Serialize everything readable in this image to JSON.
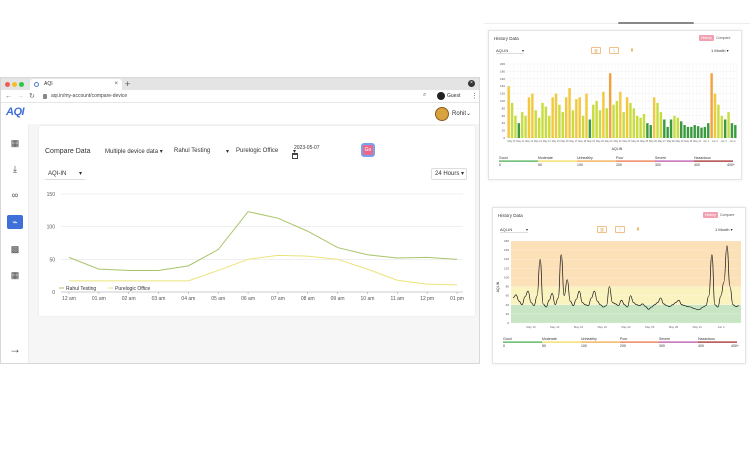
{
  "browser": {
    "tab_title": "AQI",
    "tab_close": "×",
    "new_tab": "+",
    "url": "aqi.in/my-account/compare-device",
    "profile": "Guest",
    "kebab": "⋮"
  },
  "app": {
    "logo": "AQI",
    "user_name": "Rohit",
    "sidebar_icons": [
      "grid-icon",
      "download-icon",
      "link-icon",
      "chart-icon",
      "qr-icon",
      "grid-icon"
    ],
    "compare": {
      "title": "Compare Data",
      "device_mode": "Multiple device data",
      "device_1": "Rahul Testing",
      "device_2": "Purelogic Office",
      "date": "2023-05-07",
      "go_label": "Go",
      "metric": "AQI-IN",
      "range": "24 Hours"
    }
  },
  "chart_data": [
    {
      "type": "line",
      "x": [
        "12 am",
        "01 am",
        "02 am",
        "03 am",
        "04 am",
        "05 am",
        "06 am",
        "07 am",
        "08 am",
        "09 am",
        "10 am",
        "11 am",
        "12 pm",
        "01 pm"
      ],
      "yticks": [
        0,
        50,
        100,
        150
      ],
      "ylim": [
        0,
        150
      ],
      "series": [
        {
          "name": "Rahul Testing",
          "color": "#a7c46a",
          "values": [
            53,
            35,
            33,
            33,
            40,
            65,
            123,
            113,
            93,
            68,
            57,
            52,
            53,
            50
          ]
        },
        {
          "name": "Purelogic Office",
          "color": "#ebe37a",
          "values": [
            17,
            17,
            17,
            17,
            17,
            33,
            50,
            56,
            55,
            50,
            35,
            18,
            12,
            11
          ]
        }
      ]
    },
    {
      "type": "bar",
      "title": "History Data",
      "badge_history": "History",
      "badge_compare": "Compare",
      "metric": "AQI-IN",
      "range": "1 Month",
      "xlabel": "AQI-IN",
      "yticks": [
        0,
        20,
        40,
        60,
        80,
        100,
        120,
        140,
        160,
        180,
        200
      ],
      "ylim": [
        0,
        200
      ],
      "x_tick_labels": [
        "May 10",
        "May 11",
        "May 12",
        "May 13",
        "May 14",
        "May 15",
        "May 16",
        "May 17",
        "May 18",
        "May 19",
        "May 20",
        "May 21",
        "May 22",
        "May 23",
        "May 24",
        "May 25",
        "May 26",
        "May 27",
        "May 28",
        "May 29",
        "May 30",
        "May 31",
        "Jun 1",
        "Jun 2",
        "Jun 3",
        "Jun 4"
      ],
      "values": [
        140,
        95,
        60,
        40,
        70,
        60,
        110,
        120,
        75,
        55,
        95,
        85,
        60,
        110,
        120,
        90,
        70,
        110,
        135,
        75,
        105,
        110,
        60,
        120,
        50,
        90,
        100,
        75,
        125,
        80,
        175,
        90,
        100,
        125,
        70,
        110,
        95,
        80,
        60,
        55,
        65,
        40,
        35,
        110,
        95,
        70,
        50,
        30,
        50,
        60,
        55,
        45,
        35,
        30,
        30,
        35,
        32,
        28,
        30,
        40,
        175,
        120,
        90,
        60,
        50,
        70,
        40,
        35
      ]
    },
    {
      "type": "line",
      "title": "History Data",
      "badge_history": "History",
      "badge_compare": "Compare",
      "metric": "AQI-IN",
      "range": "1 Month",
      "ylabel": "AQI-IN",
      "yticks": [
        0,
        20,
        40,
        60,
        80,
        100,
        120,
        140,
        160,
        180
      ],
      "ylim": [
        0,
        180
      ],
      "x_tick_labels": [
        "May 10",
        "May 13",
        "May 16",
        "May 19",
        "May 22",
        "May 25",
        "May 28",
        "May 31",
        "Jun 3"
      ],
      "values": [
        55,
        62,
        48,
        40,
        58,
        70,
        45,
        38,
        60,
        140,
        42,
        35,
        50,
        65,
        40,
        55,
        150,
        60,
        95,
        48,
        38,
        52,
        70,
        45,
        40,
        38,
        55,
        70,
        48,
        40,
        35,
        38,
        80,
        45,
        42,
        38,
        50,
        40,
        35,
        60,
        45,
        40,
        38,
        42,
        36,
        30,
        35,
        40,
        45,
        55,
        42,
        38,
        36,
        40,
        45,
        50,
        40,
        38,
        36,
        35,
        32,
        30,
        30,
        35,
        38,
        60,
        150,
        40,
        35,
        60,
        90,
        170,
        80,
        40,
        36,
        38
      ]
    }
  ],
  "aqi_scale": {
    "labels": [
      "Good",
      "Moderate",
      "Unhealthy",
      "Poor",
      "Severe",
      "Hazardous"
    ],
    "values": [
      "0",
      "50",
      "100",
      "200",
      "300",
      "400",
      "400+"
    ],
    "colors": [
      "#3ea94a",
      "#f6d94c",
      "#f2a23c",
      "#ea6a3b",
      "#b34aa6",
      "#9c1a1a"
    ]
  }
}
